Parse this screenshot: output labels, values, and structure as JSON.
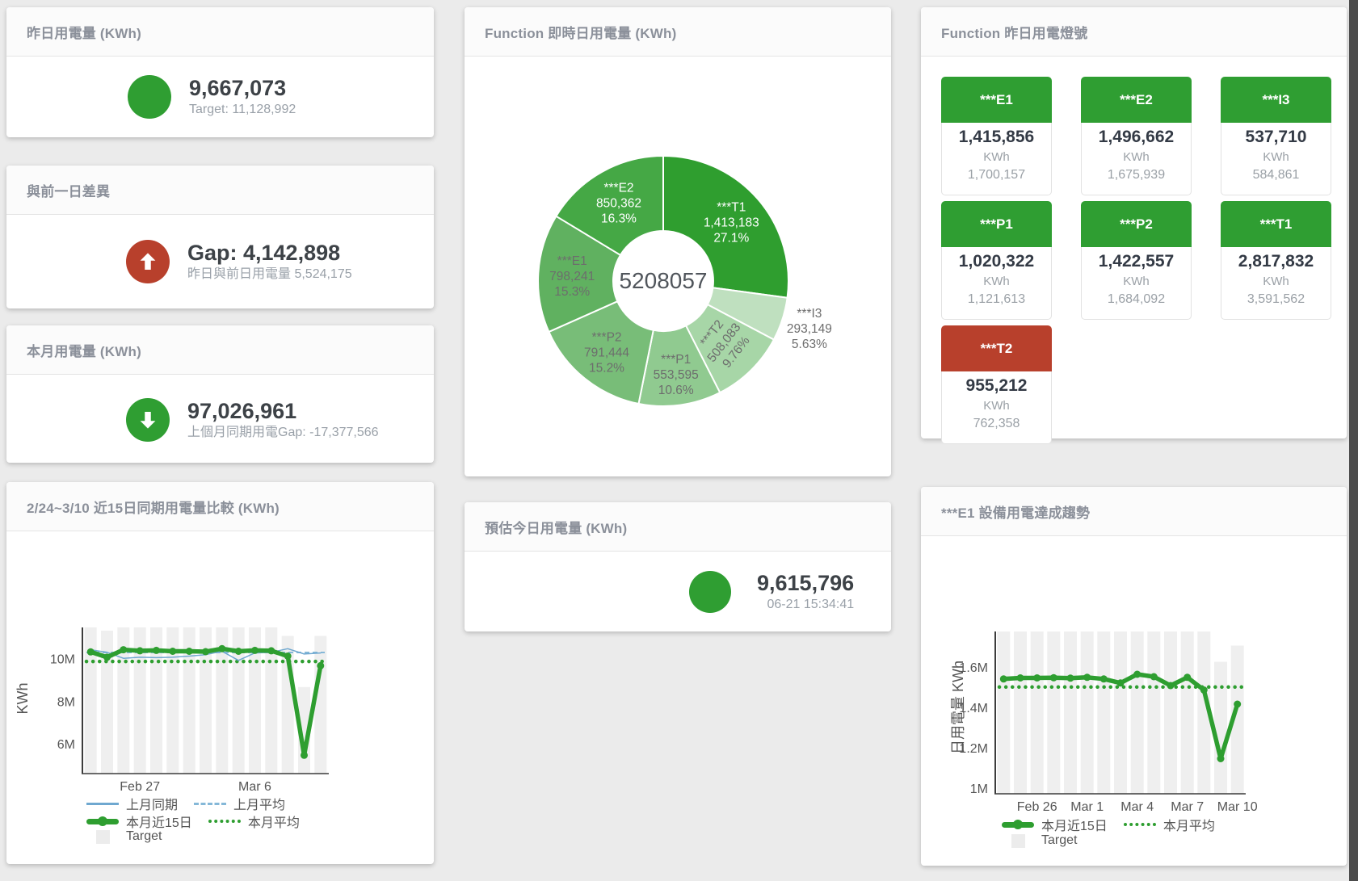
{
  "accent": {
    "green": "#2f9e32",
    "red": "#b8402c",
    "blue": "#6fa8d0",
    "target_bar_gray": "#efefef"
  },
  "cards": {
    "yesterday": {
      "title": "昨日用電量 (KWh)",
      "value": "9,667,073",
      "subtitle": "Target: 11,128,992",
      "status_icon": "green-circle"
    },
    "gap": {
      "title": "與前一日差異",
      "value": "Gap: 4,142,898",
      "subtitle": "昨日與前日用電量 5,524,175",
      "status_icon": "red-circle-arrow-up"
    },
    "month": {
      "title": "本月用電量 (KWh)",
      "value": "97,026,961",
      "subtitle": "上個月同期用電Gap: -17,377,566",
      "status_icon": "green-circle-arrow-down"
    },
    "compare": {
      "title": "2/24~3/10 近15日同期用電量比較 (KWh)"
    },
    "realtime": {
      "title": "Function 即時日用電量 (KWh)"
    },
    "estimate": {
      "title": "預估今日用電量 (KWh)",
      "value": "9,615,796",
      "subtitle": "06-21 15:34:41",
      "status_icon": "green-circle"
    },
    "lights": {
      "title": "Function 昨日用電燈號"
    },
    "trend": {
      "title": "***E1 設備用電達成趨勢"
    }
  },
  "tiles": [
    {
      "label": "***E1",
      "value": "1,415,856",
      "unit": "KWh",
      "target": "1,700,157",
      "status": "green"
    },
    {
      "label": "***E2",
      "value": "1,496,662",
      "unit": "KWh",
      "target": "1,675,939",
      "status": "green"
    },
    {
      "label": "***I3",
      "value": "537,710",
      "unit": "KWh",
      "target": "584,861",
      "status": "green"
    },
    {
      "label": "***P1",
      "value": "1,020,322",
      "unit": "KWh",
      "target": "1,121,613",
      "status": "green"
    },
    {
      "label": "***P2",
      "value": "1,422,557",
      "unit": "KWh",
      "target": "1,684,092",
      "status": "green"
    },
    {
      "label": "***T1",
      "value": "2,817,832",
      "unit": "KWh",
      "target": "3,591,562",
      "status": "green"
    },
    {
      "label": "***T2",
      "value": "955,212",
      "unit": "KWh",
      "target": "762,358",
      "status": "red"
    }
  ],
  "chart_data": [
    {
      "type": "pie",
      "title": "Function 即時日用電量 (KWh)",
      "center_total": "5208057",
      "legend_position": "none",
      "slices": [
        {
          "name": "***T1",
          "value": 1413183,
          "value_label": "1,413,183",
          "pct": "27.1%",
          "color": "#2f9e2f",
          "label_color": "#ffffff",
          "label_radius": 112
        },
        {
          "name": "***I3",
          "value": 293149,
          "value_label": "293,149",
          "pct": "5.63%",
          "color": "#bfe0bf",
          "label_color": "#6d6d6d",
          "label_radius": 190
        },
        {
          "name": "***T2",
          "value": 508083,
          "value_label": "508,083",
          "pct": "9.76%",
          "color": "#a7d6a7",
          "label_color": "#6d6d6d",
          "label_radius": 106,
          "rotate": -52
        },
        {
          "name": "***P1",
          "value": 553595,
          "value_label": "553,595",
          "pct": "10.6%",
          "color": "#90ca90",
          "label_color": "#6d6d6d",
          "label_radius": 116
        },
        {
          "name": "***P2",
          "value": 791444,
          "value_label": "791,444",
          "pct": "15.2%",
          "color": "#78bd78",
          "label_color": "#6d6d6d",
          "label_radius": 112
        },
        {
          "name": "***E1",
          "value": 798241,
          "value_label": "798,241",
          "pct": "15.3%",
          "color": "#60b160",
          "label_color": "#6d6d6d",
          "label_radius": 113
        },
        {
          "name": "***E2",
          "value": 850362,
          "value_label": "850,362",
          "pct": "16.3%",
          "color": "#45a845",
          "label_color": "#ffffff",
          "label_radius": 112
        }
      ]
    },
    {
      "type": "bar+line",
      "title": "2/24~3/10 近15日同期用電量比較 (KWh)",
      "ylabel": "KWh",
      "unit": "M KWh",
      "x_count": 15,
      "ylim": [
        4.64,
        11.9
      ],
      "grid": false,
      "yticks": [
        {
          "v": 6,
          "label": "6M"
        },
        {
          "v": 8,
          "label": "8M"
        },
        {
          "v": 10,
          "label": "10M"
        }
      ],
      "xticks": [
        {
          "i": 3,
          "label": "Feb 27"
        },
        {
          "i": 10,
          "label": "Mar 6"
        }
      ],
      "series": [
        {
          "name": "Target",
          "type": "bar",
          "color": "#efefef",
          "values": [
            11.5,
            11.35,
            11.5,
            11.5,
            11.5,
            11.5,
            11.5,
            11.5,
            11.5,
            11.5,
            11.5,
            11.5,
            11.1,
            8.7,
            11.1
          ]
        },
        {
          "name": "上月同期",
          "type": "line",
          "color": "#6fa8d0",
          "width": 1.5,
          "values": [
            10.45,
            10.33,
            10.05,
            10.1,
            10.08,
            10.1,
            10.15,
            10.22,
            10.38,
            9.95,
            10.3,
            10.33,
            10.5,
            10.25,
            10.3
          ]
        },
        {
          "name": "上月平均",
          "type": "dashed",
          "color": "#85b8d8",
          "value": 10.32
        },
        {
          "name": "本月近15日",
          "type": "line",
          "color": "#2e9e30",
          "width": 5.5,
          "values": [
            10.35,
            10.1,
            10.45,
            10.4,
            10.42,
            10.38,
            10.38,
            10.36,
            10.5,
            10.38,
            10.42,
            10.4,
            10.15,
            5.5,
            9.7
          ]
        },
        {
          "name": "本月平均",
          "type": "dotted",
          "color": "#2e9e30",
          "value": 9.9
        }
      ],
      "legend": [
        {
          "label": "上月同期"
        },
        {
          "label": "上月平均"
        },
        {
          "label": "本月近15日"
        },
        {
          "label": "本月平均"
        },
        {
          "label": "Target"
        }
      ]
    },
    {
      "type": "bar+line",
      "title": "***E1 設備用電達成趨勢",
      "ylabel": "日用電量 KWh",
      "unit": "M KWh",
      "x_count": 15,
      "ylim": [
        0.97,
        1.78
      ],
      "grid": false,
      "yticks": [
        {
          "v": 1,
          "label": "1M"
        },
        {
          "v": 1.2,
          "label": "1.2M"
        },
        {
          "v": 1.4,
          "label": "1.4M"
        },
        {
          "v": 1.6,
          "label": "1.6M"
        }
      ],
      "xticks": [
        {
          "i": 2,
          "label": "Feb 26"
        },
        {
          "i": 5,
          "label": "Mar 1"
        },
        {
          "i": 8,
          "label": "Mar 4"
        },
        {
          "i": 11,
          "label": "Mar 7"
        },
        {
          "i": 14,
          "label": "Mar 10"
        }
      ],
      "series": [
        {
          "name": "Target",
          "type": "bar",
          "color": "#efefef",
          "values": [
            1.78,
            1.78,
            1.78,
            1.78,
            1.78,
            1.78,
            1.78,
            1.78,
            1.78,
            1.78,
            1.78,
            1.78,
            1.78,
            1.63,
            1.71
          ]
        },
        {
          "name": "本月近15日",
          "type": "line",
          "color": "#2e9e30",
          "width": 5.5,
          "values": [
            1.545,
            1.55,
            1.55,
            1.551,
            1.549,
            1.553,
            1.545,
            1.525,
            1.568,
            1.556,
            1.512,
            1.553,
            1.49,
            1.15,
            1.42
          ]
        },
        {
          "name": "本月平均",
          "type": "dotted",
          "color": "#2e9e30",
          "value": 1.505
        }
      ],
      "legend": [
        {
          "label": "本月近15日"
        },
        {
          "label": "本月平均"
        },
        {
          "label": "Target"
        }
      ]
    }
  ]
}
